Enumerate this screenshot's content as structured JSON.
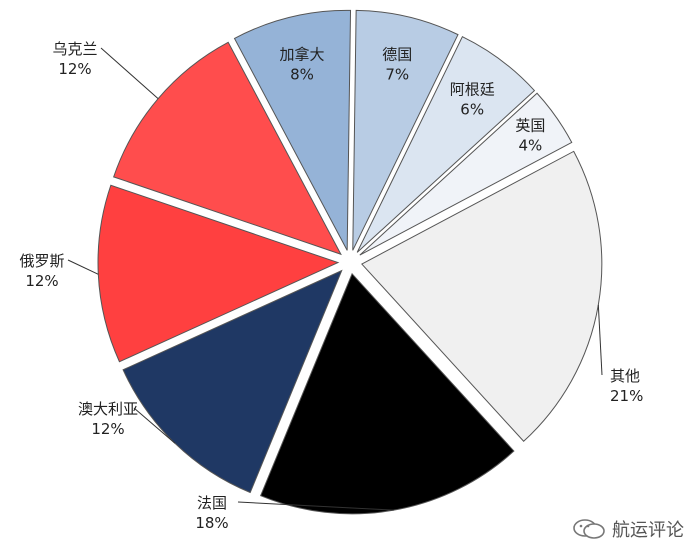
{
  "chart_data": {
    "type": "pie",
    "title": "",
    "slices": [
      {
        "label": "加拿大",
        "value": 8,
        "display": "8%",
        "color": "#95b3d7"
      },
      {
        "label": "德国",
        "value": 7,
        "display": "7%",
        "color": "#b8cce4"
      },
      {
        "label": "阿根廷",
        "value": 6,
        "display": "6%",
        "color": "#dbe5f1"
      },
      {
        "label": "英国",
        "value": 4,
        "display": "4%",
        "color": "#f0f3f8"
      },
      {
        "label": "其他",
        "value": 21,
        "display": "21%",
        "color": "#f0f0f0"
      },
      {
        "label": "法国",
        "value": 18,
        "display": "18%",
        "color": "#000000"
      },
      {
        "label": "澳大利亚",
        "value": 12,
        "display": "12%",
        "color": "#1f3864"
      },
      {
        "label": "俄罗斯",
        "value": 12,
        "display": "12%",
        "color": "#ff4040"
      },
      {
        "label": "乌克兰",
        "value": 12,
        "display": "12%",
        "color": "#ff4d4d"
      }
    ],
    "legend": "none"
  },
  "watermark": {
    "text": "航运评论",
    "icon": "wechat-icon"
  }
}
